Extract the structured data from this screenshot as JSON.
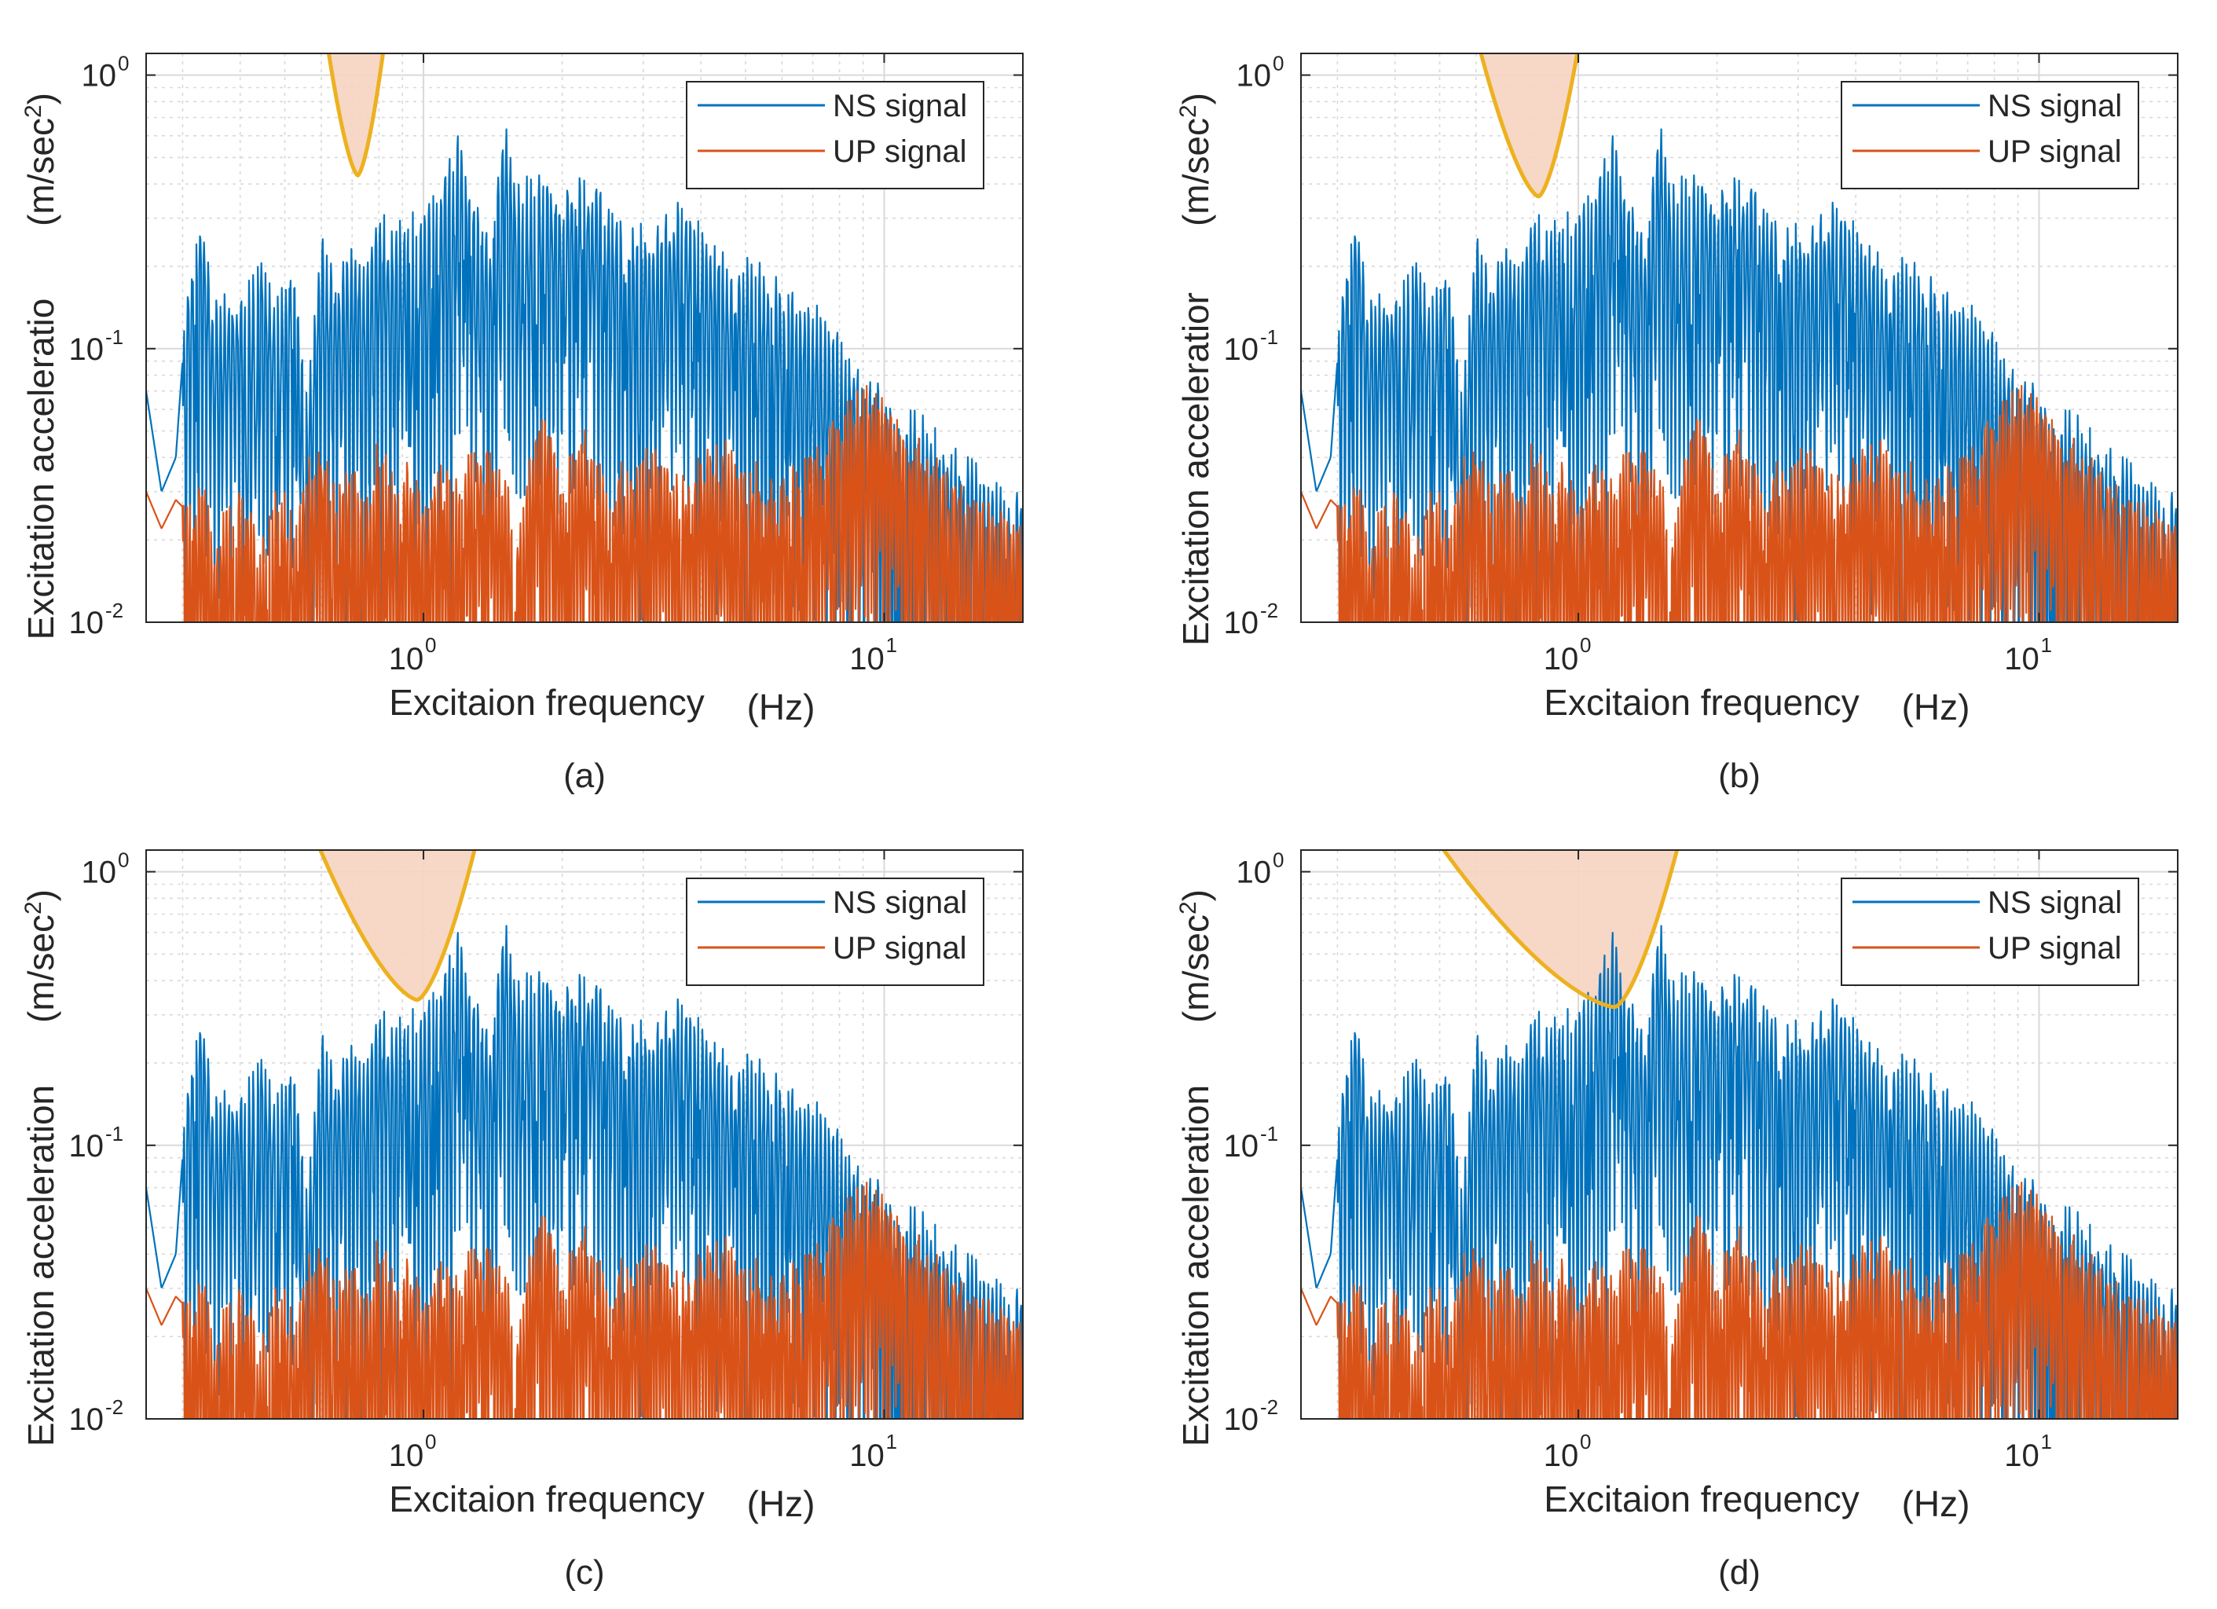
{
  "chart_data": [
    {
      "type": "line",
      "panel_label": "(a)",
      "xscale": "log",
      "yscale": "log",
      "xlim": [
        0.25,
        20
      ],
      "ylim": [
        0.01,
        1.2
      ],
      "xlabel": "Excitaion frequency",
      "xlabel_unit": "(Hz)",
      "ylabel": "Excitation acceleratio",
      "ylabel_unit_base": "(m/sec",
      "ylabel_unit_exp": "2",
      "ylabel_unit_end": ")",
      "x_ticks": [
        {
          "base": "10",
          "exp": "0",
          "value": 1
        },
        {
          "base": "10",
          "exp": "1",
          "value": 10
        }
      ],
      "y_ticks": [
        {
          "base": "10",
          "exp": "-2",
          "value": 0.01
        },
        {
          "base": "10",
          "exp": "-1",
          "value": 0.1
        },
        {
          "base": "10",
          "exp": "0",
          "value": 1
        }
      ],
      "grid": true,
      "legend_position": "top-right",
      "series": [
        {
          "name": "NS signal",
          "color": "#0072BD",
          "x": [
            0.25,
            0.27,
            0.29,
            0.31,
            0.33,
            0.35,
            0.38,
            0.41,
            0.44,
            0.48,
            0.52,
            0.56,
            0.6,
            0.65,
            0.7,
            0.75,
            0.8,
            0.86,
            0.92,
            1.0,
            1.1,
            1.2,
            1.3,
            1.4,
            1.5,
            1.6,
            1.8,
            2.0,
            2.2,
            2.5,
            2.8,
            3.2,
            3.6,
            4.0,
            4.5,
            5.0,
            6.0,
            7.0,
            8.0,
            9.0,
            10.0,
            12.0,
            14.0,
            17.0,
            20.0
          ],
          "y": [
            0.07,
            0.03,
            0.04,
            0.2,
            0.28,
            0.15,
            0.16,
            0.14,
            0.24,
            0.13,
            0.2,
            0.06,
            0.23,
            0.16,
            0.25,
            0.17,
            0.3,
            0.24,
            0.3,
            0.28,
            0.4,
            0.58,
            0.3,
            0.24,
            0.64,
            0.35,
            0.4,
            0.34,
            0.42,
            0.3,
            0.25,
            0.27,
            0.3,
            0.25,
            0.2,
            0.2,
            0.15,
            0.13,
            0.1,
            0.08,
            0.06,
            0.05,
            0.04,
            0.03,
            0.025
          ]
        },
        {
          "name": "UP signal",
          "color": "#D95319",
          "x": [
            0.25,
            0.27,
            0.29,
            0.31,
            0.33,
            0.35,
            0.38,
            0.41,
            0.44,
            0.48,
            0.52,
            0.56,
            0.6,
            0.65,
            0.7,
            0.75,
            0.8,
            0.86,
            0.92,
            1.0,
            1.1,
            1.2,
            1.3,
            1.4,
            1.5,
            1.6,
            1.8,
            2.0,
            2.2,
            2.5,
            2.8,
            3.2,
            3.6,
            4.0,
            4.5,
            5.0,
            6.0,
            7.0,
            8.0,
            9.0,
            10.0,
            12.0,
            14.0,
            17.0,
            20.0
          ],
          "y": [
            0.03,
            0.022,
            0.028,
            0.025,
            0.032,
            0.02,
            0.027,
            0.03,
            0.018,
            0.03,
            0.022,
            0.035,
            0.04,
            0.027,
            0.035,
            0.024,
            0.042,
            0.03,
            0.037,
            0.025,
            0.035,
            0.03,
            0.04,
            0.04,
            0.03,
            0.02,
            0.06,
            0.03,
            0.05,
            0.03,
            0.035,
            0.04,
            0.03,
            0.04,
            0.04,
            0.035,
            0.03,
            0.04,
            0.05,
            0.07,
            0.06,
            0.04,
            0.03,
            0.025,
            0.022
          ]
        }
      ],
      "notch": {
        "min_frequency": 0.72,
        "min_value": 0.43,
        "left_edge_frequency": 0.62,
        "right_edge_frequency": 0.82
      }
    },
    {
      "type": "line",
      "panel_label": "(b)",
      "xscale": "log",
      "yscale": "log",
      "xlim": [
        0.25,
        20
      ],
      "ylim": [
        0.01,
        1.2
      ],
      "xlabel": "Excitaion frequency",
      "xlabel_unit": "(Hz)",
      "ylabel": "Excitation acceleratior",
      "ylabel_unit_base": "(m/sec",
      "ylabel_unit_exp": "2",
      "ylabel_unit_end": ")",
      "x_ticks": [
        {
          "base": "10",
          "exp": "0",
          "value": 1
        },
        {
          "base": "10",
          "exp": "1",
          "value": 10
        }
      ],
      "y_ticks": [
        {
          "base": "10",
          "exp": "-2",
          "value": 0.01
        },
        {
          "base": "10",
          "exp": "-1",
          "value": 0.1
        },
        {
          "base": "10",
          "exp": "0",
          "value": 1
        }
      ],
      "grid": true,
      "legend_position": "top-right",
      "series": [
        {
          "name": "NS signal",
          "color": "#0072BD",
          "x": [
            0.25,
            0.27,
            0.29,
            0.31,
            0.33,
            0.35,
            0.38,
            0.41,
            0.44,
            0.48,
            0.52,
            0.56,
            0.6,
            0.65,
            0.7,
            0.75,
            0.8,
            0.86,
            0.92,
            1.0,
            1.1,
            1.2,
            1.3,
            1.4,
            1.5,
            1.6,
            1.8,
            2.0,
            2.2,
            2.5,
            2.8,
            3.2,
            3.6,
            4.0,
            4.5,
            5.0,
            6.0,
            7.0,
            8.0,
            9.0,
            10.0,
            12.0,
            14.0,
            17.0,
            20.0
          ],
          "y": [
            0.07,
            0.03,
            0.04,
            0.2,
            0.28,
            0.15,
            0.16,
            0.14,
            0.24,
            0.13,
            0.2,
            0.06,
            0.23,
            0.16,
            0.25,
            0.17,
            0.3,
            0.24,
            0.3,
            0.28,
            0.4,
            0.58,
            0.3,
            0.24,
            0.64,
            0.35,
            0.4,
            0.34,
            0.42,
            0.3,
            0.25,
            0.27,
            0.3,
            0.25,
            0.2,
            0.2,
            0.15,
            0.13,
            0.1,
            0.08,
            0.06,
            0.05,
            0.04,
            0.03,
            0.025
          ]
        },
        {
          "name": "UP signal",
          "color": "#D95319",
          "x": [
            0.25,
            0.27,
            0.29,
            0.31,
            0.33,
            0.35,
            0.38,
            0.41,
            0.44,
            0.48,
            0.52,
            0.56,
            0.6,
            0.65,
            0.7,
            0.75,
            0.8,
            0.86,
            0.92,
            1.0,
            1.1,
            1.2,
            1.3,
            1.4,
            1.5,
            1.6,
            1.8,
            2.0,
            2.2,
            2.5,
            2.8,
            3.2,
            3.6,
            4.0,
            4.5,
            5.0,
            6.0,
            7.0,
            8.0,
            9.0,
            10.0,
            12.0,
            14.0,
            17.0,
            20.0
          ],
          "y": [
            0.03,
            0.022,
            0.028,
            0.025,
            0.032,
            0.02,
            0.027,
            0.03,
            0.018,
            0.03,
            0.022,
            0.035,
            0.04,
            0.027,
            0.035,
            0.024,
            0.042,
            0.03,
            0.037,
            0.025,
            0.035,
            0.03,
            0.04,
            0.04,
            0.03,
            0.02,
            0.06,
            0.03,
            0.05,
            0.03,
            0.035,
            0.04,
            0.03,
            0.04,
            0.04,
            0.035,
            0.03,
            0.04,
            0.05,
            0.07,
            0.06,
            0.04,
            0.03,
            0.025,
            0.022
          ]
        }
      ],
      "notch": {
        "min_frequency": 0.82,
        "min_value": 0.36,
        "left_edge_frequency": 0.61,
        "right_edge_frequency": 1.0
      }
    },
    {
      "type": "line",
      "panel_label": "(c)",
      "xscale": "log",
      "yscale": "log",
      "xlim": [
        0.25,
        20
      ],
      "ylim": [
        0.01,
        1.2
      ],
      "xlabel": "Excitaion frequency",
      "xlabel_unit": "(Hz)",
      "ylabel": "Excitation acceleration",
      "ylabel_unit_base": "(m/sec",
      "ylabel_unit_exp": "2",
      "ylabel_unit_end": ")",
      "x_ticks": [
        {
          "base": "10",
          "exp": "0",
          "value": 1
        },
        {
          "base": "10",
          "exp": "1",
          "value": 10
        }
      ],
      "y_ticks": [
        {
          "base": "10",
          "exp": "-2",
          "value": 0.01
        },
        {
          "base": "10",
          "exp": "-1",
          "value": 0.1
        },
        {
          "base": "10",
          "exp": "0",
          "value": 1
        }
      ],
      "grid": true,
      "legend_position": "top-right",
      "series": [
        {
          "name": "NS signal",
          "color": "#0072BD",
          "x": [
            0.25,
            0.27,
            0.29,
            0.31,
            0.33,
            0.35,
            0.38,
            0.41,
            0.44,
            0.48,
            0.52,
            0.56,
            0.6,
            0.65,
            0.7,
            0.75,
            0.8,
            0.86,
            0.92,
            1.0,
            1.1,
            1.2,
            1.3,
            1.4,
            1.5,
            1.6,
            1.8,
            2.0,
            2.2,
            2.5,
            2.8,
            3.2,
            3.6,
            4.0,
            4.5,
            5.0,
            6.0,
            7.0,
            8.0,
            9.0,
            10.0,
            12.0,
            14.0,
            17.0,
            20.0
          ],
          "y": [
            0.07,
            0.03,
            0.04,
            0.2,
            0.28,
            0.15,
            0.16,
            0.14,
            0.24,
            0.13,
            0.2,
            0.06,
            0.23,
            0.16,
            0.25,
            0.17,
            0.3,
            0.24,
            0.3,
            0.28,
            0.4,
            0.58,
            0.3,
            0.24,
            0.64,
            0.35,
            0.4,
            0.34,
            0.42,
            0.3,
            0.25,
            0.27,
            0.3,
            0.25,
            0.2,
            0.2,
            0.15,
            0.13,
            0.1,
            0.08,
            0.06,
            0.05,
            0.04,
            0.03,
            0.025
          ]
        },
        {
          "name": "UP signal",
          "color": "#D95319",
          "x": [
            0.25,
            0.27,
            0.29,
            0.31,
            0.33,
            0.35,
            0.38,
            0.41,
            0.44,
            0.48,
            0.52,
            0.56,
            0.6,
            0.65,
            0.7,
            0.75,
            0.8,
            0.86,
            0.92,
            1.0,
            1.1,
            1.2,
            1.3,
            1.4,
            1.5,
            1.6,
            1.8,
            2.0,
            2.2,
            2.5,
            2.8,
            3.2,
            3.6,
            4.0,
            4.5,
            5.0,
            6.0,
            7.0,
            8.0,
            9.0,
            10.0,
            12.0,
            14.0,
            17.0,
            20.0
          ],
          "y": [
            0.03,
            0.022,
            0.028,
            0.025,
            0.032,
            0.02,
            0.027,
            0.03,
            0.018,
            0.03,
            0.022,
            0.035,
            0.04,
            0.027,
            0.035,
            0.024,
            0.042,
            0.03,
            0.037,
            0.025,
            0.035,
            0.03,
            0.04,
            0.04,
            0.03,
            0.02,
            0.06,
            0.03,
            0.05,
            0.03,
            0.035,
            0.04,
            0.03,
            0.04,
            0.04,
            0.035,
            0.03,
            0.04,
            0.05,
            0.07,
            0.06,
            0.04,
            0.03,
            0.025,
            0.022
          ]
        }
      ],
      "notch": {
        "min_frequency": 0.97,
        "min_value": 0.34,
        "left_edge_frequency": 0.59,
        "right_edge_frequency": 1.3
      }
    },
    {
      "type": "line",
      "panel_label": "(d)",
      "xscale": "log",
      "yscale": "log",
      "xlim": [
        0.25,
        20
      ],
      "ylim": [
        0.01,
        1.2
      ],
      "xlabel": "Excitaion frequency",
      "xlabel_unit": "(Hz)",
      "ylabel": "Excitation acceleration",
      "ylabel_unit_base": "(m/sec",
      "ylabel_unit_exp": "2",
      "ylabel_unit_end": ")",
      "x_ticks": [
        {
          "base": "10",
          "exp": "0",
          "value": 1
        },
        {
          "base": "10",
          "exp": "1",
          "value": 10
        }
      ],
      "y_ticks": [
        {
          "base": "10",
          "exp": "-2",
          "value": 0.01
        },
        {
          "base": "10",
          "exp": "-1",
          "value": 0.1
        },
        {
          "base": "10",
          "exp": "0",
          "value": 1
        }
      ],
      "grid": true,
      "legend_position": "top-right",
      "series": [
        {
          "name": "NS signal",
          "color": "#0072BD",
          "x": [
            0.25,
            0.27,
            0.29,
            0.31,
            0.33,
            0.35,
            0.38,
            0.41,
            0.44,
            0.48,
            0.52,
            0.56,
            0.6,
            0.65,
            0.7,
            0.75,
            0.8,
            0.86,
            0.92,
            1.0,
            1.1,
            1.2,
            1.3,
            1.4,
            1.5,
            1.6,
            1.8,
            2.0,
            2.2,
            2.5,
            2.8,
            3.2,
            3.6,
            4.0,
            4.5,
            5.0,
            6.0,
            7.0,
            8.0,
            9.0,
            10.0,
            12.0,
            14.0,
            17.0,
            20.0
          ],
          "y": [
            0.07,
            0.03,
            0.04,
            0.2,
            0.28,
            0.15,
            0.16,
            0.14,
            0.24,
            0.13,
            0.2,
            0.06,
            0.23,
            0.16,
            0.25,
            0.17,
            0.3,
            0.24,
            0.3,
            0.28,
            0.4,
            0.58,
            0.3,
            0.24,
            0.64,
            0.35,
            0.4,
            0.34,
            0.42,
            0.3,
            0.25,
            0.27,
            0.3,
            0.25,
            0.2,
            0.2,
            0.15,
            0.13,
            0.1,
            0.08,
            0.06,
            0.05,
            0.04,
            0.03,
            0.025
          ]
        },
        {
          "name": "UP signal",
          "color": "#D95319",
          "x": [
            0.25,
            0.27,
            0.29,
            0.31,
            0.33,
            0.35,
            0.38,
            0.41,
            0.44,
            0.48,
            0.52,
            0.56,
            0.6,
            0.65,
            0.7,
            0.75,
            0.8,
            0.86,
            0.92,
            1.0,
            1.1,
            1.2,
            1.3,
            1.4,
            1.5,
            1.6,
            1.8,
            2.0,
            2.2,
            2.5,
            2.8,
            3.2,
            3.6,
            4.0,
            4.5,
            5.0,
            6.0,
            7.0,
            8.0,
            9.0,
            10.0,
            12.0,
            14.0,
            17.0,
            20.0
          ],
          "y": [
            0.03,
            0.022,
            0.028,
            0.025,
            0.032,
            0.02,
            0.027,
            0.03,
            0.018,
            0.03,
            0.022,
            0.035,
            0.04,
            0.027,
            0.035,
            0.024,
            0.042,
            0.03,
            0.037,
            0.025,
            0.035,
            0.03,
            0.04,
            0.04,
            0.03,
            0.02,
            0.06,
            0.03,
            0.05,
            0.03,
            0.035,
            0.04,
            0.03,
            0.04,
            0.04,
            0.035,
            0.03,
            0.04,
            0.05,
            0.07,
            0.06,
            0.04,
            0.03,
            0.025,
            0.022
          ]
        }
      ],
      "notch": {
        "min_frequency": 1.2,
        "min_value": 0.32,
        "left_edge_frequency": 0.5,
        "right_edge_frequency": 1.65
      }
    }
  ],
  "colors": {
    "ns": "#0072BD",
    "up": "#D95319",
    "notch_stroke": "#EDB120",
    "notch_fill": "#F6D3C0",
    "grid": "#D9D9D9",
    "axis": "#262626"
  }
}
